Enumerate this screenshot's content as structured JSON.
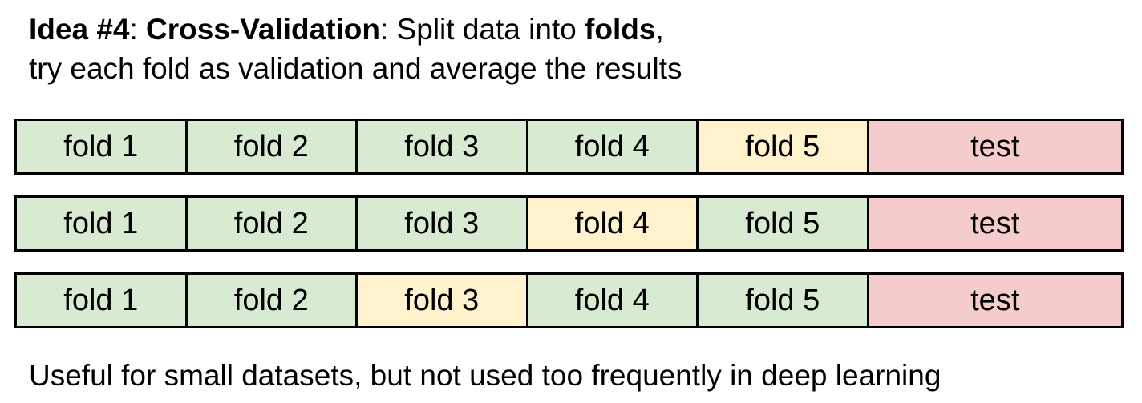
{
  "heading": {
    "line1": {
      "idea": "Idea #4",
      "sep1": ": ",
      "method": "Cross-Validation",
      "sep2": ": Split data into ",
      "folds": "folds",
      "end": ","
    },
    "line2": "try each fold as validation and average the results"
  },
  "colors": {
    "train": "#d9ead3",
    "validation": "#fff2cc",
    "test": "#f4cccc"
  },
  "rows": [
    {
      "cells": [
        {
          "label": "fold 1",
          "kind": "train"
        },
        {
          "label": "fold 2",
          "kind": "train"
        },
        {
          "label": "fold 3",
          "kind": "train"
        },
        {
          "label": "fold 4",
          "kind": "train"
        },
        {
          "label": "fold 5",
          "kind": "validation"
        },
        {
          "label": "test",
          "kind": "test"
        }
      ]
    },
    {
      "cells": [
        {
          "label": "fold 1",
          "kind": "train"
        },
        {
          "label": "fold 2",
          "kind": "train"
        },
        {
          "label": "fold 3",
          "kind": "train"
        },
        {
          "label": "fold 4",
          "kind": "validation"
        },
        {
          "label": "fold 5",
          "kind": "train"
        },
        {
          "label": "test",
          "kind": "test"
        }
      ]
    },
    {
      "cells": [
        {
          "label": "fold 1",
          "kind": "train"
        },
        {
          "label": "fold 2",
          "kind": "train"
        },
        {
          "label": "fold 3",
          "kind": "validation"
        },
        {
          "label": "fold 4",
          "kind": "train"
        },
        {
          "label": "fold 5",
          "kind": "train"
        },
        {
          "label": "test",
          "kind": "test"
        }
      ]
    }
  ],
  "footer": "Useful for small datasets, but not used too frequently in deep learning"
}
